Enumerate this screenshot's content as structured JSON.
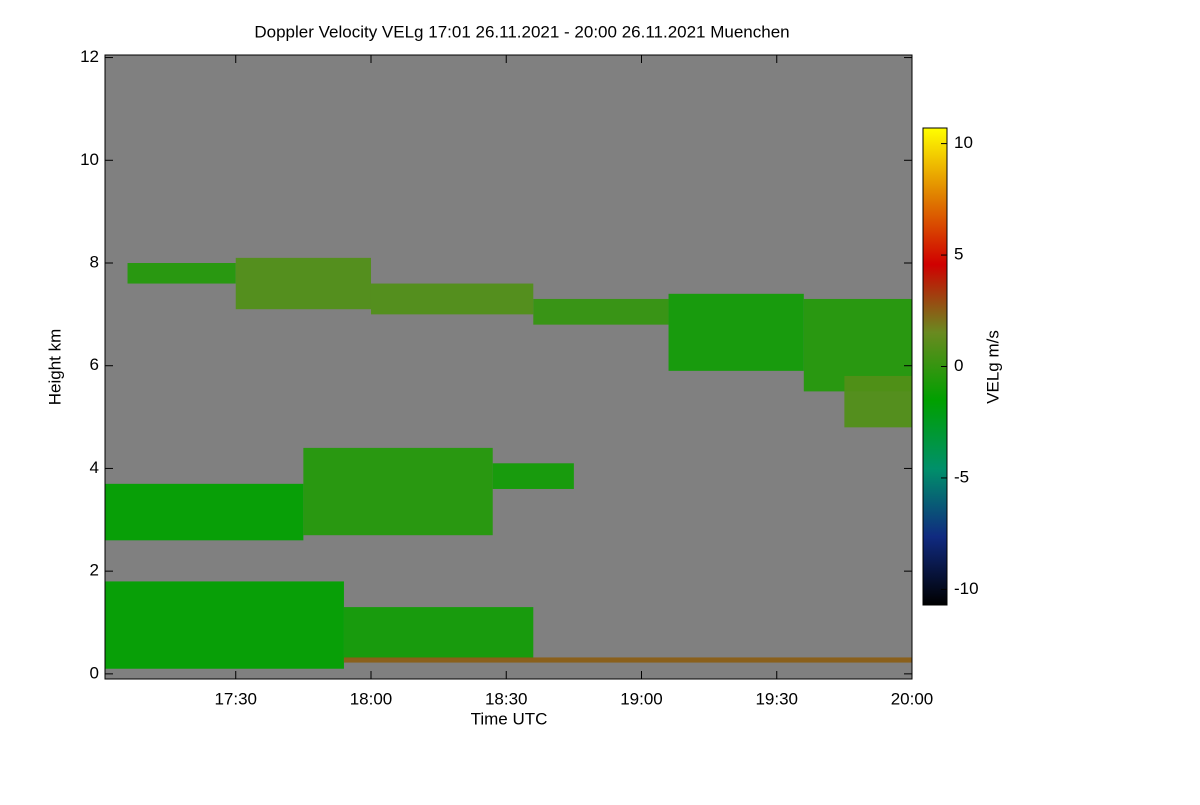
{
  "chart_data": {
    "type": "heatmap",
    "title": "Doppler Velocity VELg   17:01 26.11.2021 - 20:00 26.11.2021 Muenchen",
    "xlabel": "Time UTC",
    "ylabel": "Height km",
    "colorbar_label": "VELg m/s",
    "background": "#808080",
    "xlim": [
      17.0167,
      20.0
    ],
    "xticks": [
      {
        "value": 17.5,
        "label": "17:30"
      },
      {
        "value": 18.0,
        "label": "18:00"
      },
      {
        "value": 18.5,
        "label": "18:30"
      },
      {
        "value": 19.0,
        "label": "19:00"
      },
      {
        "value": 19.5,
        "label": "19:30"
      },
      {
        "value": 20.0,
        "label": "20:00"
      }
    ],
    "ylim": [
      -0.1,
      12.05
    ],
    "yticks": [
      0,
      2,
      4,
      6,
      8,
      10,
      12
    ],
    "zlim": [
      -10.7,
      10.7
    ],
    "zticks": [
      -10,
      -5,
      0,
      5,
      10
    ],
    "colormap": [
      "#000000",
      "#102a80",
      "#00906a",
      "#00a000",
      "#6a8a20",
      "#d00000",
      "#e08000",
      "#ffff00"
    ],
    "cells": [
      {
        "x": [
          17.0167,
          17.9
        ],
        "y": [
          0.1,
          1.8
        ],
        "value": -1.5
      },
      {
        "x": [
          17.9,
          18.6
        ],
        "y": [
          0.3,
          1.3
        ],
        "value": -1
      },
      {
        "x": [
          17.0167,
          17.75
        ],
        "y": [
          2.6,
          3.7
        ],
        "value": -1.5
      },
      {
        "x": [
          17.75,
          18.45
        ],
        "y": [
          2.7,
          4.4
        ],
        "value": -0.5
      },
      {
        "x": [
          18.45,
          18.75
        ],
        "y": [
          3.6,
          4.1
        ],
        "value": -1
      },
      {
        "x": [
          17.1,
          17.5
        ],
        "y": [
          7.6,
          8.0
        ],
        "value": -0.5
      },
      {
        "x": [
          17.5,
          18.0
        ],
        "y": [
          7.1,
          8.1
        ],
        "value": 0.8
      },
      {
        "x": [
          18.0,
          18.6
        ],
        "y": [
          7.0,
          7.6
        ],
        "value": 0.8
      },
      {
        "x": [
          18.6,
          19.1
        ],
        "y": [
          6.8,
          7.3
        ],
        "value": 0
      },
      {
        "x": [
          19.1,
          19.6
        ],
        "y": [
          5.9,
          7.4
        ],
        "value": -1
      },
      {
        "x": [
          19.6,
          20.0
        ],
        "y": [
          5.5,
          7.3
        ],
        "value": -0.5
      },
      {
        "x": [
          19.75,
          20.0
        ],
        "y": [
          4.8,
          5.8
        ],
        "value": 0.8
      },
      {
        "x": [
          17.9,
          20.0
        ],
        "y": [
          0.22,
          0.32
        ],
        "value": 2.5
      }
    ]
  }
}
